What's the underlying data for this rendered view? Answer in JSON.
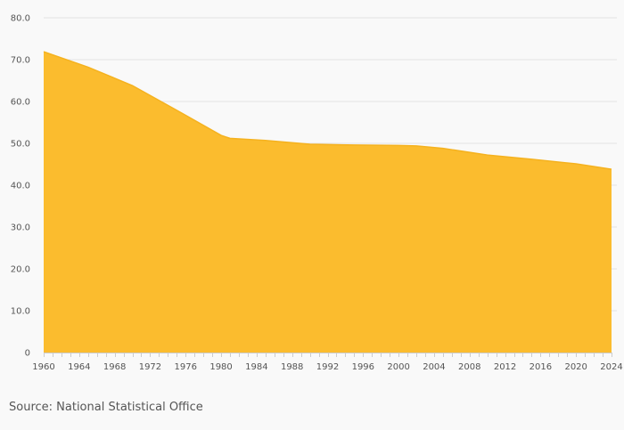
{
  "chart_data": {
    "type": "area",
    "title": "",
    "xlabel": "",
    "ylabel": "",
    "x": [
      1960,
      1965,
      1970,
      1975,
      1980,
      1981,
      1985,
      1990,
      1995,
      2000,
      2002,
      2005,
      2010,
      2015,
      2020,
      2024
    ],
    "series": [
      {
        "values": [
          71.9,
          68.2,
          63.8,
          57.9,
          51.9,
          51.2,
          50.7,
          49.8,
          49.6,
          49.5,
          49.4,
          48.8,
          47.2,
          46.2,
          45.1,
          43.8
        ]
      }
    ],
    "ylim": [
      0,
      80
    ],
    "xlim": [
      1960,
      2024
    ],
    "y_ticks": [
      "0",
      "10.0",
      "20.0",
      "30.0",
      "40.0",
      "50.0",
      "60.0",
      "70.0",
      "80.0"
    ],
    "x_ticks": [
      "1960",
      "1964",
      "1968",
      "1972",
      "1976",
      "1980",
      "1984",
      "1988",
      "1992",
      "1996",
      "2000",
      "2004",
      "2008",
      "2012",
      "2016",
      "2020",
      "2024"
    ],
    "grid": true,
    "legend": "none",
    "colors": {
      "fill": "#fbbc2e",
      "stroke": "#f5b21f",
      "grid": "#e4e4e4",
      "axis": "#cccccc",
      "text": "#555555",
      "background": "#f9f9f9"
    }
  },
  "source": "Source: National Statistical Office"
}
